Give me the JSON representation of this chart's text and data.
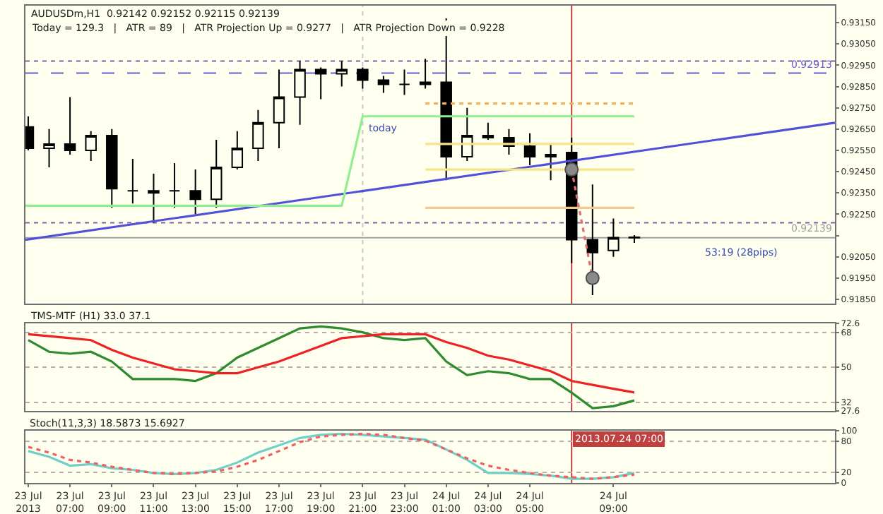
{
  "chart_data": [
    {
      "type": "candlestick",
      "title": "AUDUSDm,H1  0.92142 0.92152 0.92115 0.92139",
      "subtitle": "Today = 129.3   |   ATR = 89   |   ATR Projection Up = 0.9277   |   ATR Projection Down = 0.9228",
      "color": "#000000",
      "x": [
        "2013-07-23T05:00",
        "2013-07-23T06:00",
        "2013-07-23T07:00",
        "2013-07-23T08:00",
        "2013-07-23T09:00",
        "2013-07-23T10:00",
        "2013-07-23T11:00",
        "2013-07-23T12:00",
        "2013-07-23T13:00",
        "2013-07-23T14:00",
        "2013-07-23T15:00",
        "2013-07-23T16:00",
        "2013-07-23T17:00",
        "2013-07-23T18:00",
        "2013-07-23T19:00",
        "2013-07-23T20:00",
        "2013-07-23T21:00",
        "2013-07-23T22:00",
        "2013-07-23T23:00",
        "2013-07-24T00:00",
        "2013-07-24T01:00",
        "2013-07-24T02:00",
        "2013-07-24T03:00",
        "2013-07-24T04:00",
        "2013-07-24T05:00",
        "2013-07-24T06:00",
        "2013-07-24T07:00",
        "2013-07-24T08:00",
        "2013-07-24T09:00",
        "2013-07-24T10:00"
      ],
      "ohlc": [
        [
          0.9266,
          0.9271,
          0.9255,
          0.9256
        ],
        [
          0.9256,
          0.9265,
          0.9247,
          0.9258
        ],
        [
          0.9258,
          0.928,
          0.9253,
          0.9255
        ],
        [
          0.9255,
          0.9264,
          0.925,
          0.9262
        ],
        [
          0.9262,
          0.9265,
          0.9228,
          0.9237
        ],
        [
          0.9236,
          0.9251,
          0.923,
          0.9236
        ],
        [
          0.9235,
          0.9244,
          0.9221,
          0.9236
        ],
        [
          0.9236,
          0.9249,
          0.9228,
          0.9236
        ],
        [
          0.9236,
          0.9246,
          0.9225,
          0.9232
        ],
        [
          0.9232,
          0.926,
          0.9228,
          0.9247
        ],
        [
          0.9247,
          0.9264,
          0.9246,
          0.9256
        ],
        [
          0.9256,
          0.9274,
          0.925,
          0.9268
        ],
        [
          0.9268,
          0.9293,
          0.9256,
          0.928
        ],
        [
          0.928,
          0.9297,
          0.9267,
          0.9293
        ],
        [
          0.9293,
          0.9294,
          0.9279,
          0.9291
        ],
        [
          0.9291,
          0.9297,
          0.9285,
          0.9293
        ],
        [
          0.9293,
          0.9294,
          0.9284,
          0.9288
        ],
        [
          0.9288,
          0.929,
          0.9282,
          0.9286
        ],
        [
          0.9286,
          0.9293,
          0.9281,
          0.9286
        ],
        [
          0.9286,
          0.9298,
          0.9284,
          0.9287
        ],
        [
          0.9287,
          0.9317,
          0.9241,
          0.9252
        ],
        [
          0.9252,
          0.9275,
          0.925,
          0.9262
        ],
        [
          0.9262,
          0.9268,
          0.926,
          0.9261
        ],
        [
          0.9261,
          0.9265,
          0.9253,
          0.9257
        ],
        [
          0.9257,
          0.9263,
          0.9248,
          0.9252
        ],
        [
          0.9252,
          0.9258,
          0.9241,
          0.9253
        ],
        [
          0.9254,
          0.9261,
          0.9202,
          0.9213
        ],
        [
          0.9213,
          0.9239,
          0.9187,
          0.9207
        ],
        [
          0.9208,
          0.9223,
          0.9205,
          0.9214
        ],
        [
          0.92142,
          0.92152,
          0.92115,
          0.92139
        ]
      ],
      "series": [
        {
          "type": "line",
          "color": "#5050d8",
          "x": [
            "2013-07-23T04:52",
            "2013-07-24T19:36"
          ],
          "values": [
            0.9213,
            0.9268
          ]
        },
        {
          "type": "line",
          "color": "#90ee90",
          "x": [
            "2013-07-23T04:52",
            "2013-07-23T20:00",
            "2013-07-23T21:00",
            "2013-07-24T10:00"
          ],
          "values": [
            0.9229,
            0.9229,
            0.9271,
            0.9271
          ]
        },
        {
          "type": "line",
          "color": "#f0b060",
          "line_style": "dotted",
          "x": [
            "2013-07-24T00:00",
            "2013-07-24T10:00"
          ],
          "values": [
            0.9277,
            0.9277
          ]
        },
        {
          "type": "line",
          "color": "#f5e48a",
          "x": [
            "2013-07-24T00:00",
            "2013-07-24T10:00"
          ],
          "values": [
            0.9258,
            0.9258
          ]
        },
        {
          "type": "line",
          "color": "#f5e48a",
          "x": [
            "2013-07-24T00:00",
            "2013-07-24T10:00"
          ],
          "values": [
            0.9246,
            0.9246
          ]
        },
        {
          "type": "line",
          "color": "#f5c890",
          "x": [
            "2013-07-24T00:00",
            "2013-07-24T10:00"
          ],
          "values": [
            0.9228,
            0.9228
          ]
        },
        {
          "type": "line",
          "color": "#e07070",
          "line_style": "dotted",
          "x": [
            "2013-07-24T07:00",
            "2013-07-24T08:00"
          ],
          "values": [
            0.9246,
            0.9195
          ]
        },
        {
          "type": "scatter",
          "color": "#8a8a8a",
          "marker": "circle",
          "x": [
            "2013-07-24T07:00",
            "2013-07-24T08:00"
          ],
          "values": [
            0.9246,
            0.9195
          ]
        }
      ],
      "xlim": [
        "2013-07-23T04:52",
        "2013-07-24T19:36"
      ],
      "ylim": [
        0.9183,
        0.9323
      ],
      "yticks": [
        {
          "value": 0.9185,
          "label": "0.91850"
        },
        {
          "value": 0.9195,
          "label": "0.91950"
        },
        {
          "value": 0.9205,
          "label": "0.92050"
        },
        {
          "value": 0.9215,
          "label": null
        },
        {
          "value": 0.9225,
          "label": "0.92250"
        },
        {
          "value": 0.9235,
          "label": "0.92350"
        },
        {
          "value": 0.9245,
          "label": "0.92450"
        },
        {
          "value": 0.9255,
          "label": "0.92550"
        },
        {
          "value": 0.9265,
          "label": "0.92650"
        },
        {
          "value": 0.9275,
          "label": "0.92750"
        },
        {
          "value": 0.9285,
          "label": "0.92850"
        },
        {
          "value": 0.9295,
          "label": "0.92950"
        },
        {
          "value": 0.9305,
          "label": "0.93050"
        },
        {
          "value": 0.9315,
          "label": "0.93150"
        }
      ],
      "ref_lines": [
        {
          "axis": "y",
          "value": 0.9297,
          "color": "#8060a0",
          "line_style": "dotted"
        },
        {
          "axis": "y",
          "value": 0.92913,
          "label": "0.92913",
          "color": "#6a5acd",
          "line_style": "dashed"
        },
        {
          "axis": "y",
          "value": 0.9221,
          "color": "#8060a0",
          "line_style": "dotted"
        },
        {
          "axis": "y",
          "value": 0.92139,
          "label": "0.92139",
          "color": "#a0a0a0",
          "line_style": "solid"
        },
        {
          "axis": "x",
          "value": "2013-07-23T21:00",
          "color": "#c8c8c8",
          "line_style": "dotted"
        },
        {
          "axis": "x",
          "value": "2013-07-24T07:00",
          "color": "#c04040",
          "line_style": "solid"
        }
      ],
      "annotations": [
        {
          "text": "today",
          "x": "2013-07-23T21:00",
          "y": 0.9269
        },
        {
          "text": "53:19 (28pips)",
          "x": "2013-07-24T13:06",
          "y": 0.9211
        }
      ],
      "tick_labels": "y"
    },
    {
      "type": "line",
      "title": "TMS-MTF (H1) 33.0 37.1",
      "x": [
        "2013-07-23T05:00",
        "2013-07-23T06:00",
        "2013-07-23T07:00",
        "2013-07-23T08:00",
        "2013-07-23T09:00",
        "2013-07-23T10:00",
        "2013-07-23T11:00",
        "2013-07-23T12:00",
        "2013-07-23T13:00",
        "2013-07-23T14:00",
        "2013-07-23T15:00",
        "2013-07-23T16:00",
        "2013-07-23T17:00",
        "2013-07-23T18:00",
        "2013-07-23T19:00",
        "2013-07-23T20:00",
        "2013-07-23T21:00",
        "2013-07-23T22:00",
        "2013-07-23T23:00",
        "2013-07-24T00:00",
        "2013-07-24T01:00",
        "2013-07-24T02:00",
        "2013-07-24T03:00",
        "2013-07-24T04:00",
        "2013-07-24T05:00",
        "2013-07-24T06:00",
        "2013-07-24T07:00",
        "2013-07-24T08:00",
        "2013-07-24T09:00",
        "2013-07-24T10:00"
      ],
      "series": [
        {
          "color": "#2e8b2e",
          "values": [
            64,
            58,
            57,
            58,
            53,
            44,
            44,
            44,
            43,
            47,
            55,
            60,
            65,
            70,
            71,
            70,
            68,
            65,
            64,
            65,
            53,
            46,
            48,
            47,
            44,
            44,
            37,
            29,
            30,
            33.0
          ]
        },
        {
          "color": "#ee2222",
          "values": [
            67,
            66,
            65,
            64,
            59,
            55,
            52,
            49,
            48,
            47,
            47,
            50,
            53,
            57,
            61,
            65,
            66,
            67,
            67,
            67,
            63,
            60,
            56,
            54,
            51,
            48,
            43,
            41,
            39,
            37.1
          ]
        }
      ],
      "xlim": [
        "2013-07-23T04:52",
        "2013-07-24T19:36"
      ],
      "ylim": [
        27.6,
        72.6
      ],
      "yticks": [
        27.6,
        32,
        50,
        68,
        72.6
      ],
      "grid": "y",
      "ref_lines": [
        {
          "axis": "x",
          "value": "2013-07-24T07:00",
          "color": "#c04040",
          "line_style": "solid"
        }
      ],
      "tick_labels": "y"
    },
    {
      "type": "line",
      "title": "Stoch(11,3,3) 18.5873 15.6927",
      "x": [
        "2013-07-23T05:00",
        "2013-07-23T06:00",
        "2013-07-23T07:00",
        "2013-07-23T08:00",
        "2013-07-23T09:00",
        "2013-07-23T10:00",
        "2013-07-23T11:00",
        "2013-07-23T12:00",
        "2013-07-23T13:00",
        "2013-07-23T14:00",
        "2013-07-23T15:00",
        "2013-07-23T16:00",
        "2013-07-23T17:00",
        "2013-07-23T18:00",
        "2013-07-23T19:00",
        "2013-07-23T20:00",
        "2013-07-23T21:00",
        "2013-07-23T22:00",
        "2013-07-23T23:00",
        "2013-07-24T00:00",
        "2013-07-24T01:00",
        "2013-07-24T02:00",
        "2013-07-24T03:00",
        "2013-07-24T04:00",
        "2013-07-24T05:00",
        "2013-07-24T06:00",
        "2013-07-24T07:00",
        "2013-07-24T08:00",
        "2013-07-24T09:00",
        "2013-07-24T10:00"
      ],
      "series": [
        {
          "color": "#70d0c8",
          "values": [
            61,
            50,
            33,
            36,
            28,
            25,
            19,
            17,
            19,
            25,
            39,
            58,
            72,
            86,
            92,
            94,
            92,
            89,
            86,
            83,
            64,
            44,
            19,
            19,
            17,
            14,
            8,
            8,
            11,
            19
          ]
        },
        {
          "color": "#f06060",
          "line_style": "dotted",
          "values": [
            69,
            58,
            44,
            39,
            31,
            25,
            19,
            17,
            19,
            22,
            31,
            44,
            61,
            78,
            89,
            92,
            94,
            92,
            86,
            81,
            64,
            47,
            33,
            25,
            19,
            14,
            11,
            8,
            11,
            16
          ]
        }
      ],
      "xlim": [
        "2013-07-23T04:52",
        "2013-07-24T19:36"
      ],
      "xticks": [
        {
          "value": "2013-07-23T05:00",
          "label": "23 Jul 2013"
        },
        {
          "value": "2013-07-23T07:00",
          "label": "23 Jul 07:00"
        },
        {
          "value": "2013-07-23T09:00",
          "label": "23 Jul 09:00"
        },
        {
          "value": "2013-07-23T11:00",
          "label": "23 Jul 11:00"
        },
        {
          "value": "2013-07-23T13:00",
          "label": "23 Jul 13:00"
        },
        {
          "value": "2013-07-23T15:00",
          "label": "23 Jul 15:00"
        },
        {
          "value": "2013-07-23T17:00",
          "label": "23 Jul 17:00"
        },
        {
          "value": "2013-07-23T19:00",
          "label": "23 Jul 19:00"
        },
        {
          "value": "2013-07-23T21:00",
          "label": "23 Jul 21:00"
        },
        {
          "value": "2013-07-23T23:00",
          "label": "23 Jul 23:00"
        },
        {
          "value": "2013-07-24T01:00",
          "label": "24 Jul 01:00"
        },
        {
          "value": "2013-07-24T03:00",
          "label": "24 Jul 03:00"
        },
        {
          "value": "2013-07-24T05:00",
          "label": "24 Jul 05:00"
        },
        {
          "value": "2013-07-24T09:00",
          "label": "24 Jul 09:00"
        }
      ],
      "ylim": [
        0,
        100
      ],
      "yticks": [
        0,
        20,
        80,
        100
      ],
      "grid": "y",
      "ref_lines": [
        {
          "axis": "x",
          "value": "2013-07-24T07:00",
          "label": "2013.07.24 07:00",
          "color": "#c04040",
          "line_style": "solid"
        }
      ]
    }
  ]
}
